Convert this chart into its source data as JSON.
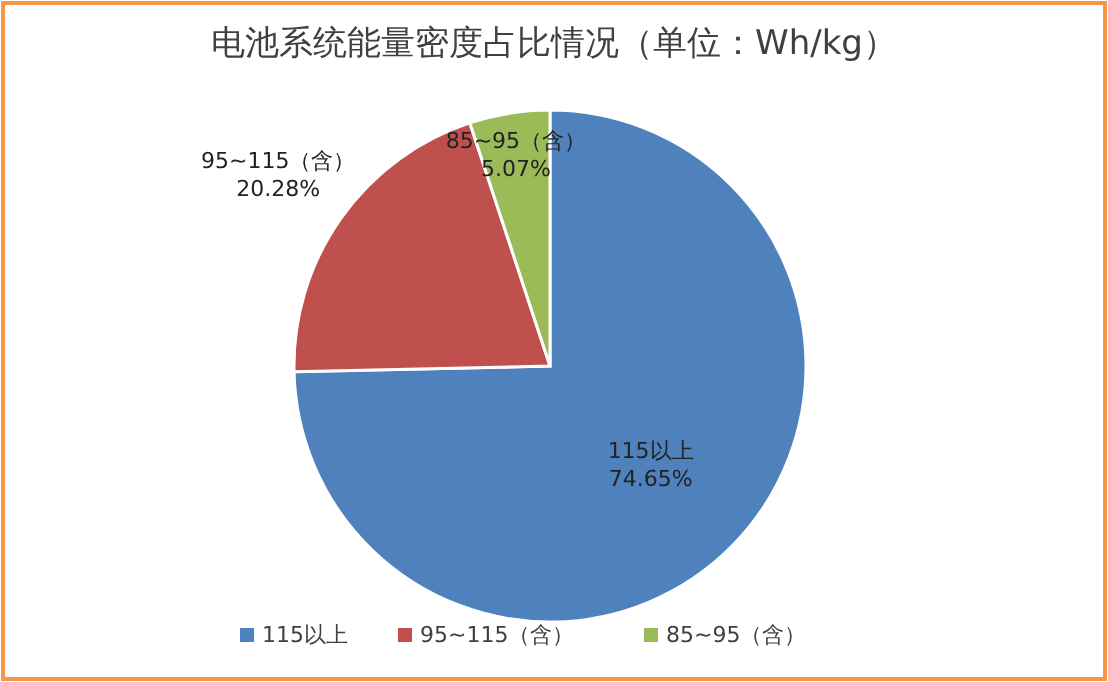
{
  "chart_data": {
    "type": "pie",
    "title": "电池系统能量密度占比情况（单位：Wh/kg）",
    "categories": [
      "115以上",
      "95~115（含）",
      "85~95（含）"
    ],
    "values": [
      74.65,
      20.28,
      5.07
    ],
    "value_labels": [
      "74.65%",
      "20.28%",
      "5.07%"
    ],
    "colors": [
      "#4f81bd",
      "#c0504d",
      "#9bbb59"
    ],
    "legend": "bottom"
  }
}
